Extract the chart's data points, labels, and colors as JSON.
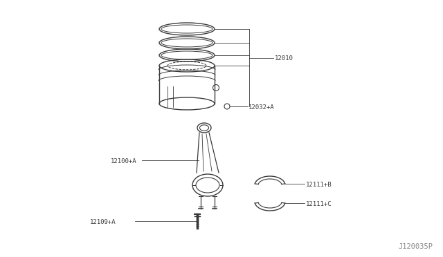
{
  "bg_color": "#ffffff",
  "line_color": "#3a3a3a",
  "label_color": "#3a3a3a",
  "part_label_12010": "12010",
  "part_label_12032A": "12032+A",
  "part_label_12100A": "12100+A",
  "part_label_12111B": "12111+B",
  "part_label_12111C": "12111+C",
  "part_label_12109A": "12109+A",
  "footer_label": "J120035P",
  "label_fontsize": 6.5,
  "footer_fontsize": 7.5
}
